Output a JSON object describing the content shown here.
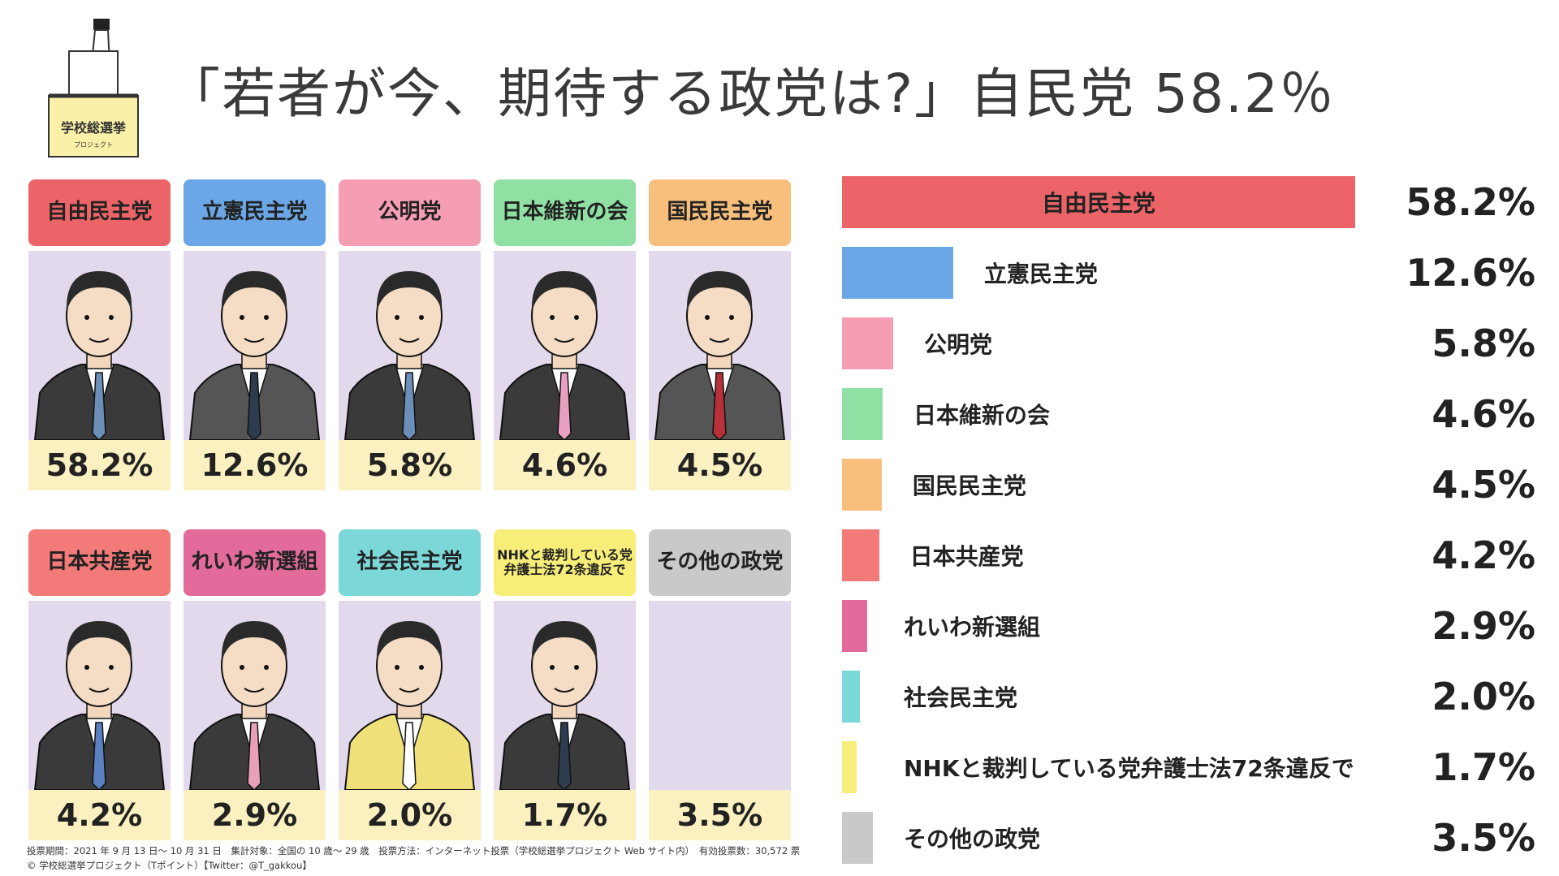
{
  "header": {
    "title": "「若者が今、期待する政党は?」自民党 58.2％",
    "logo": "学校総選挙",
    "logo_sub": "プロジェクト"
  },
  "chart_data": {
    "type": "bar",
    "orientation": "horizontal",
    "categories": [
      "自由民主党",
      "立憲民主党",
      "公明党",
      "日本維新の会",
      "国民民主党",
      "日本共産党",
      "れいわ新選組",
      "社会民主党",
      "NHKと裁判している党弁護士法72条違反で",
      "その他の政党"
    ],
    "values": [
      58.2,
      12.6,
      5.8,
      4.6,
      4.5,
      4.2,
      2.9,
      2.0,
      1.7,
      3.5
    ],
    "value_labels": [
      "58.2%",
      "12.6%",
      "5.8%",
      "4.6%",
      "4.5%",
      "4.2%",
      "2.9%",
      "2.0%",
      "1.7%",
      "3.5%"
    ],
    "colors": [
      "#ec6467",
      "#6ba6e6",
      "#f59db3",
      "#8fe0a2",
      "#f8bf7c",
      "#f27a78",
      "#e26b9b",
      "#7cd8d8",
      "#f7ee7a",
      "#c9c9c9"
    ]
  },
  "footnote": [
    "投票期間：2021 年 9 月 13 日〜 10 月 31 日　集計対象：全国の 10 歳〜 29 歳　投票方法：インターネット投票（学校総選挙プロジェクト Web サイト内）　有効投票数：30,572 票",
    "© 学校総選挙プロジェクト（Tポイント）【Twitter：@T_gakkou】"
  ]
}
